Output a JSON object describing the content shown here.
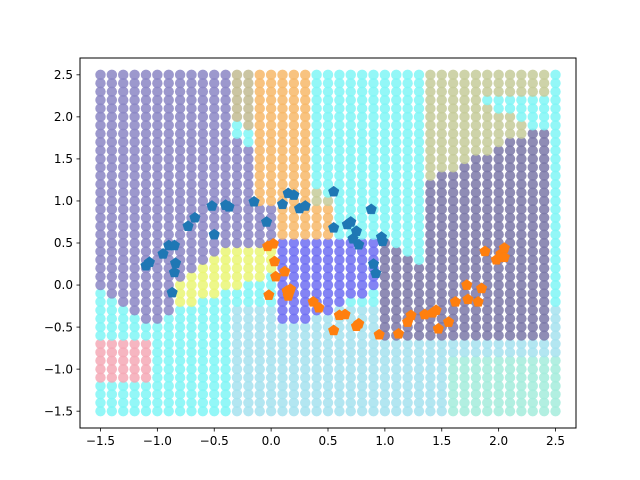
{
  "chart_data": {
    "type": "scatter",
    "title": "",
    "xlabel": "",
    "ylabel": "",
    "xlim": [
      -1.68,
      2.68
    ],
    "ylim": [
      -1.7,
      2.7
    ],
    "xticks": [
      -1.5,
      -1.0,
      -0.5,
      0.0,
      0.5,
      1.0,
      1.5,
      2.0,
      2.5
    ],
    "yticks": [
      -1.5,
      -1.0,
      -0.5,
      0.0,
      0.5,
      1.0,
      1.5,
      2.0,
      2.5
    ],
    "xtick_labels": [
      "−1.5",
      "−1.0",
      "−0.5",
      "0.0",
      "0.5",
      "1.0",
      "1.5",
      "2.0",
      "2.5"
    ],
    "ytick_labels": [
      "−1.5",
      "−1.0",
      "−0.5",
      "0.0",
      "0.5",
      "1.0",
      "1.5",
      "2.0",
      "2.5"
    ],
    "grid": false,
    "legend": "none",
    "background_grid": {
      "description": "decision-region mesh of translucent circles, step 0.1 from -1.5 to 2.5 on both axes",
      "x_range": [
        -1.5,
        2.5
      ],
      "y_range": [
        -1.5,
        2.5
      ],
      "step": 0.1,
      "region_colors": {
        "purple": "#8b86c4",
        "tan": "#c2bb92",
        "cyan": "#80f6f6",
        "lightblue": "#a6e2ee",
        "mint": "#a5ecdc",
        "navy": "#7b78a8",
        "olive": "#c6cb9a",
        "blue": "#6f6ff2",
        "orange": "#f7b86a",
        "yellow": "#eaf676",
        "pink": "#f4a9b6"
      }
    },
    "series": [
      {
        "marker": "pentagon",
        "color": "#1f77b4",
        "points": [
          [
            -1.1,
            0.23
          ],
          [
            -1.07,
            0.27
          ],
          [
            -0.95,
            0.37
          ],
          [
            -0.9,
            0.47
          ],
          [
            -0.85,
            0.47
          ],
          [
            -0.87,
            -0.09
          ],
          [
            -0.85,
            0.15
          ],
          [
            -0.84,
            0.26
          ],
          [
            -0.73,
            0.7
          ],
          [
            -0.67,
            0.8
          ],
          [
            -0.52,
            0.94
          ],
          [
            -0.5,
            0.6
          ],
          [
            -0.4,
            0.95
          ],
          [
            -0.37,
            0.93
          ],
          [
            -0.15,
            0.99
          ],
          [
            -0.04,
            0.75
          ],
          [
            0.1,
            0.96
          ],
          [
            0.15,
            1.09
          ],
          [
            0.2,
            1.07
          ],
          [
            0.25,
            0.91
          ],
          [
            0.3,
            0.94
          ],
          [
            0.55,
            1.11
          ],
          [
            0.55,
            0.68
          ],
          [
            0.67,
            0.72
          ],
          [
            0.7,
            0.75
          ],
          [
            0.72,
            0.55
          ],
          [
            0.75,
            0.64
          ],
          [
            0.77,
            0.48
          ],
          [
            0.88,
            0.9
          ],
          [
            0.9,
            0.25
          ],
          [
            0.92,
            0.14
          ],
          [
            0.97,
            0.57
          ],
          [
            0.98,
            0.52
          ]
        ]
      },
      {
        "marker": "pentagon",
        "color": "#ff7f0e",
        "points": [
          [
            -0.03,
            0.46
          ],
          [
            0.02,
            0.49
          ],
          [
            0.03,
            0.28
          ],
          [
            0.04,
            0.1
          ],
          [
            -0.02,
            -0.12
          ],
          [
            0.12,
            0.16
          ],
          [
            0.14,
            -0.07
          ],
          [
            0.15,
            -0.13
          ],
          [
            0.17,
            -0.05
          ],
          [
            0.37,
            -0.2
          ],
          [
            0.42,
            -0.27
          ],
          [
            0.55,
            -0.54
          ],
          [
            0.6,
            -0.36
          ],
          [
            0.65,
            -0.35
          ],
          [
            0.75,
            -0.49
          ],
          [
            0.77,
            -0.46
          ],
          [
            0.95,
            -0.59
          ],
          [
            1.12,
            -0.58
          ],
          [
            1.2,
            -0.44
          ],
          [
            1.23,
            -0.36
          ],
          [
            1.35,
            -0.35
          ],
          [
            1.42,
            -0.33
          ],
          [
            1.45,
            -0.3
          ],
          [
            1.47,
            -0.52
          ],
          [
            1.56,
            -0.44
          ],
          [
            1.62,
            -0.2
          ],
          [
            1.72,
            0.0
          ],
          [
            1.73,
            -0.17
          ],
          [
            1.82,
            -0.2
          ],
          [
            1.85,
            -0.04
          ],
          [
            1.88,
            0.4
          ],
          [
            1.98,
            0.3
          ],
          [
            2.02,
            0.37
          ],
          [
            2.05,
            0.33
          ],
          [
            2.05,
            0.44
          ]
        ]
      }
    ]
  }
}
